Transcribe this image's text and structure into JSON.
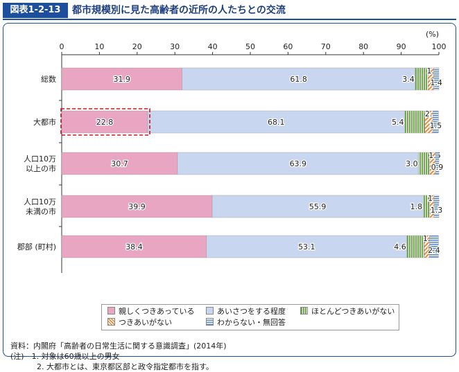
{
  "header": {
    "figure_number": "図表1-2-13",
    "title": "都市規模別に見た高齢者の近所の人たちとの交流"
  },
  "chart_data": {
    "type": "bar",
    "orientation": "horizontal",
    "stacked": true,
    "unit_label": "(%)",
    "xlim": [
      0,
      100
    ],
    "ticks": [
      "0",
      "10",
      "20",
      "30",
      "40",
      "50",
      "60",
      "70",
      "80",
      "90",
      "100"
    ],
    "categories": [
      "総数",
      "大都市",
      "人口10万\n以上の市",
      "人口10万\n未満の市",
      "郡部 (町村)"
    ],
    "highlighted_category": "大都市",
    "series": [
      {
        "name": "親しくつきあっている",
        "color": "#e8a6c3",
        "pattern": "solid",
        "values": [
          31.9,
          22.8,
          30.7,
          39.9,
          38.4
        ]
      },
      {
        "name": "あいさつをする程度",
        "color": "#c8d6ef",
        "pattern": "solid",
        "values": [
          61.8,
          68.1,
          63.9,
          55.9,
          53.1
        ]
      },
      {
        "name": "ほとんどつきあいがない",
        "color": "#6fa84e",
        "pattern": "vertical-stripes",
        "values": [
          3.4,
          5.4,
          3.0,
          1.8,
          4.6
        ]
      },
      {
        "name": "つきあいがない",
        "color": "#e8893f",
        "pattern": "diagonal-stripes",
        "values": [
          1.5,
          2.1,
          1.5,
          1.1,
          1.4
        ]
      },
      {
        "name": "わからない・無回答",
        "color": "#5b8ac9",
        "pattern": "horizontal-stripes",
        "values": [
          1.4,
          1.5,
          0.9,
          1.3,
          2.4
        ]
      }
    ],
    "legend_position": "bottom",
    "grid": false
  },
  "notes": {
    "source": "資料：内閣府「高齢者の日常生活に関する意識調査」(2014年)",
    "note1": "(注)　1. 対象は60歳以上の男女",
    "note2": "2. 大都市とは、東京都区部と政令指定都市を指す。"
  }
}
